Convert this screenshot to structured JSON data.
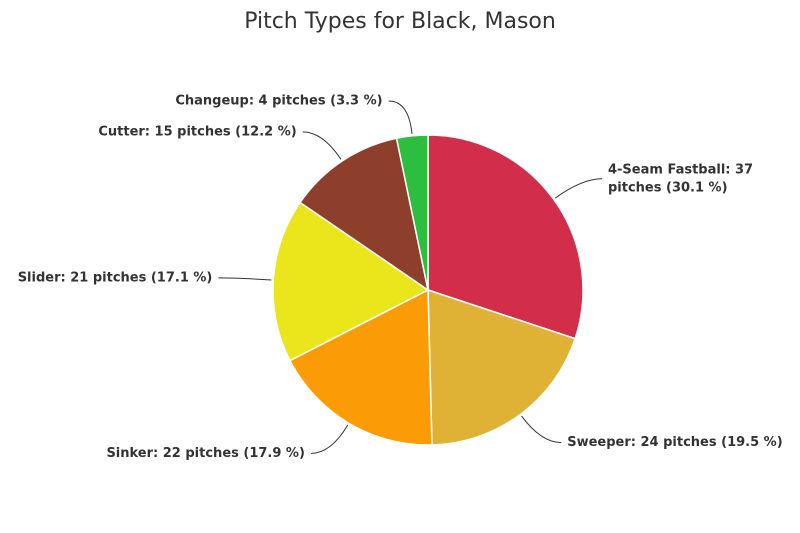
{
  "chart_data": {
    "type": "pie",
    "title": "Pitch Types for Black, Mason",
    "categories": [
      "4-Seam Fastball: 37 pitches (30.1 %)",
      "Sweeper: 24 pitches (19.5 %)",
      "Sinker: 22 pitches (17.9 %)",
      "Slider: 21 pitches (17.1 %)",
      "Cutter: 15 pitches (12.2 %)",
      "Changeup: 4 pitches (3.3 %)"
    ],
    "values": [
      37,
      24,
      22,
      21,
      15,
      4
    ],
    "colors": [
      "#d22e4a",
      "#dfb236",
      "#fb9c06",
      "#ebe51b",
      "#8e3f2b",
      "#2dbe3f"
    ]
  }
}
